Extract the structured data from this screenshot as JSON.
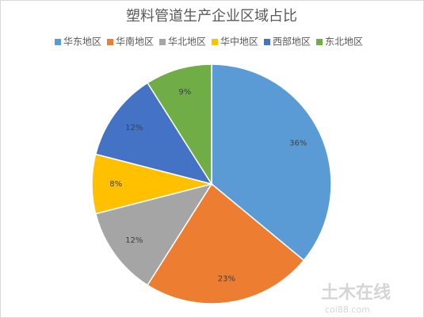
{
  "chart_data": {
    "type": "pie",
    "title": "塑料管道生产企业区域占比",
    "categories": [
      "华东地区",
      "华南地区",
      "华北地区",
      "华中地区",
      "西部地区",
      "东北地区"
    ],
    "values": [
      36,
      23,
      12,
      8,
      12,
      9
    ],
    "value_labels": [
      "36%",
      "23%",
      "12%",
      "8%",
      "12%",
      "9%"
    ],
    "colors": [
      "#5b9bd5",
      "#ed7d31",
      "#a5a5a5",
      "#ffc000",
      "#4472c4",
      "#70ad47"
    ],
    "legend": "top"
  },
  "watermark": {
    "name": "土木在线",
    "site": "coi88.com"
  }
}
